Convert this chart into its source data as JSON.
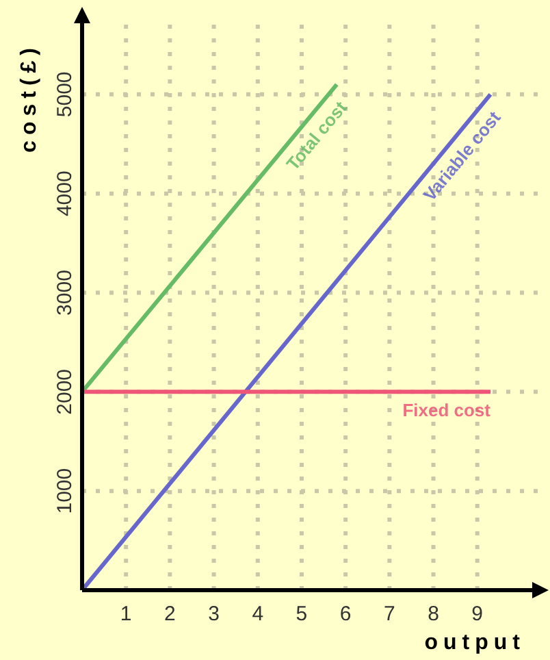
{
  "chart_data": {
    "type": "line",
    "xlabel": "output",
    "ylabel": "cost(£)",
    "xlim": [
      0,
      10.5
    ],
    "ylim": [
      0,
      5800
    ],
    "xticks": [
      1,
      2,
      3,
      4,
      5,
      6,
      7,
      8,
      9
    ],
    "yticks": [
      1000,
      2000,
      3000,
      4000,
      5000
    ],
    "grid": true,
    "marker": "none",
    "line_style": "solid",
    "series": [
      {
        "name": "Total cost",
        "color": "#66bb66",
        "x": [
          0,
          5.8
        ],
        "values": [
          2000,
          5100
        ]
      },
      {
        "name": "Variable cost",
        "color": "#6666cc",
        "x": [
          0,
          9.3
        ],
        "values": [
          0,
          5000
        ]
      },
      {
        "name": "Fixed cost",
        "color": "#ee5577",
        "x": [
          0,
          9.3
        ],
        "values": [
          2000,
          2000
        ]
      }
    ]
  }
}
